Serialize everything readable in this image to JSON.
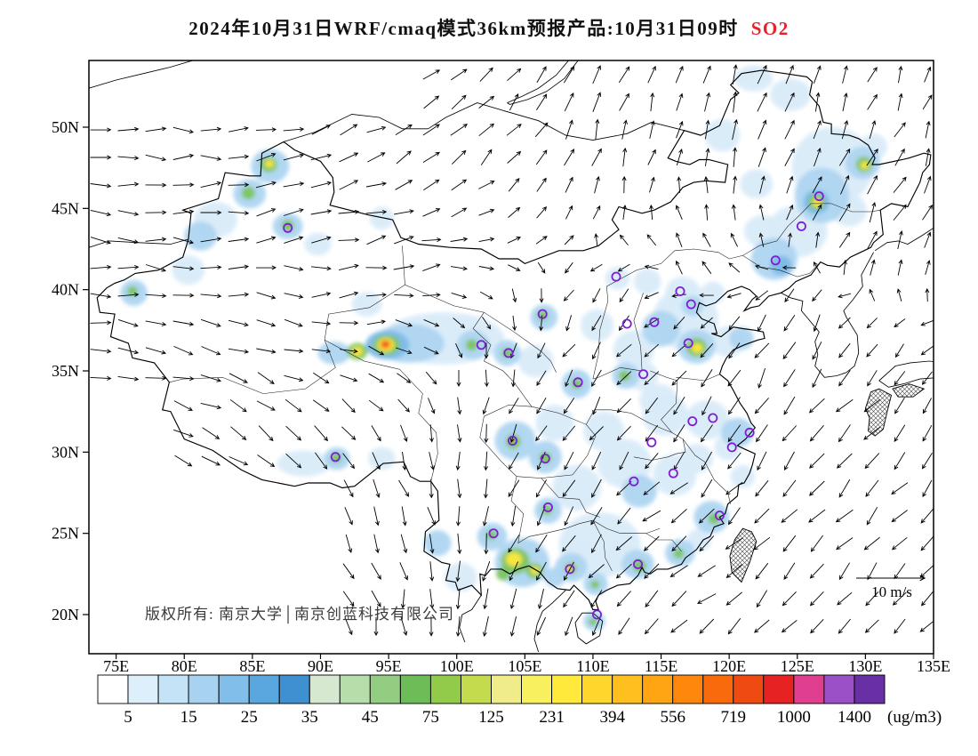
{
  "title": {
    "text": "2024年10月31日WRF/cmaq模式36km预报产品:10月31日09时",
    "species": "SO2",
    "species_color": "#e8212d"
  },
  "map": {
    "copyright": "版权所有: 南京大学│南京创蓝科技有限公司",
    "wind_scale": {
      "label": "10 m/s",
      "speed_mps": 10
    },
    "lat_ticks": [
      {
        "label": "50N",
        "lat": 50
      },
      {
        "label": "45N",
        "lat": 45
      },
      {
        "label": "40N",
        "lat": 40
      },
      {
        "label": "35N",
        "lat": 35
      },
      {
        "label": "30N",
        "lat": 30
      },
      {
        "label": "25N",
        "lat": 25
      },
      {
        "label": "20N",
        "lat": 20
      }
    ],
    "lon_ticks": [
      {
        "label": "75E",
        "lon": 75
      },
      {
        "label": "80E",
        "lon": 80
      },
      {
        "label": "85E",
        "lon": 85
      },
      {
        "label": "90E",
        "lon": 90
      },
      {
        "label": "95E",
        "lon": 95
      },
      {
        "label": "100E",
        "lon": 100
      },
      {
        "label": "105E",
        "lon": 105
      },
      {
        "label": "110E",
        "lon": 110
      },
      {
        "label": "115E",
        "lon": 115
      },
      {
        "label": "120E",
        "lon": 120
      },
      {
        "label": "125E",
        "lon": 125
      },
      {
        "label": "130E",
        "lon": 130
      },
      {
        "label": "135E",
        "lon": 135
      }
    ],
    "marker_color": "#7d1fd1",
    "station_markers": [
      [
        126.6,
        45.75
      ],
      [
        125.3,
        43.9
      ],
      [
        123.4,
        41.8
      ],
      [
        116.4,
        39.9
      ],
      [
        117.2,
        39.1
      ],
      [
        114.5,
        38.0
      ],
      [
        112.5,
        37.9
      ],
      [
        117.0,
        36.7
      ],
      [
        113.7,
        34.8
      ],
      [
        108.9,
        34.3
      ],
      [
        106.3,
        38.5
      ],
      [
        103.8,
        36.1
      ],
      [
        101.8,
        36.6
      ],
      [
        87.6,
        43.8
      ],
      [
        91.1,
        29.7
      ],
      [
        104.1,
        30.7
      ],
      [
        106.5,
        29.6
      ],
      [
        114.3,
        30.6
      ],
      [
        113.0,
        28.2
      ],
      [
        115.9,
        28.7
      ],
      [
        117.3,
        31.9
      ],
      [
        118.8,
        32.1
      ],
      [
        121.5,
        31.2
      ],
      [
        120.2,
        30.3
      ],
      [
        119.3,
        26.1
      ],
      [
        113.3,
        23.1
      ],
      [
        108.3,
        22.8
      ],
      [
        106.7,
        26.6
      ],
      [
        102.7,
        25.0
      ],
      [
        110.3,
        20.0
      ],
      [
        111.7,
        40.8
      ]
    ],
    "field_levels": {
      "pale": "#d9ebf9",
      "light": "#aed5f1",
      "med": "#7db9e8",
      "green": "#7cc45e",
      "ygreen": "#c3db4d",
      "yellow": "#ffe83a",
      "orange": "#ff9712",
      "red": "#e62525"
    },
    "so2_field_blobs": [
      [
        127.6,
        47.6,
        3.0,
        2.4,
        "pale"
      ],
      [
        126.8,
        45.8,
        2.0,
        1.7,
        "light"
      ],
      [
        125.0,
        43.6,
        2.2,
        1.6,
        "pale"
      ],
      [
        123.3,
        41.9,
        1.7,
        1.3,
        "light"
      ],
      [
        123.8,
        41.5,
        0.8,
        0.6,
        "med"
      ],
      [
        126.4,
        45.4,
        0.95,
        0.75,
        "med"
      ],
      [
        126.4,
        45.4,
        0.6,
        0.48,
        "green"
      ],
      [
        126.45,
        45.35,
        0.34,
        0.27,
        "yellow"
      ],
      [
        129.8,
        47.8,
        1.3,
        1.0,
        "light"
      ],
      [
        129.9,
        47.7,
        0.6,
        0.48,
        "green"
      ],
      [
        129.95,
        47.65,
        0.3,
        0.24,
        "yellow"
      ],
      [
        130.6,
        48.8,
        1.0,
        0.8,
        "pale"
      ],
      [
        121.8,
        53.0,
        1.4,
        0.8,
        "pale"
      ],
      [
        124.5,
        52.0,
        1.5,
        1.0,
        "pale"
      ],
      [
        128.8,
        44.9,
        1.3,
        1.0,
        "pale"
      ],
      [
        122.5,
        43.6,
        1.4,
        1.0,
        "pale"
      ],
      [
        119.5,
        49.5,
        1.3,
        1.0,
        "pale"
      ],
      [
        122.0,
        46.5,
        1.2,
        0.9,
        "pale"
      ],
      [
        116.8,
        38.2,
        2.4,
        1.9,
        "pale"
      ],
      [
        115.0,
        37.6,
        1.4,
        1.1,
        "light"
      ],
      [
        117.6,
        36.5,
        1.4,
        1.05,
        "light"
      ],
      [
        117.6,
        36.45,
        0.75,
        0.58,
        "green"
      ],
      [
        117.65,
        36.4,
        0.4,
        0.3,
        "yellow"
      ],
      [
        119.9,
        36.8,
        1.2,
        0.95,
        "pale"
      ],
      [
        120.9,
        37.0,
        0.9,
        0.7,
        "light"
      ],
      [
        113.0,
        36.3,
        1.5,
        1.2,
        "pale"
      ],
      [
        112.4,
        34.7,
        1.0,
        0.8,
        "light"
      ],
      [
        112.3,
        34.7,
        0.42,
        0.33,
        "green"
      ],
      [
        110.3,
        37.8,
        1.2,
        1.0,
        "pale"
      ],
      [
        106.4,
        38.3,
        1.0,
        0.8,
        "light"
      ],
      [
        106.3,
        38.4,
        0.4,
        0.3,
        "green"
      ],
      [
        116.6,
        39.8,
        1.3,
        1.0,
        "pale"
      ],
      [
        117.3,
        39.0,
        0.8,
        0.62,
        "light"
      ],
      [
        114.0,
        40.5,
        1.0,
        0.8,
        "pale"
      ],
      [
        118.8,
        39.8,
        0.9,
        0.7,
        "pale"
      ],
      [
        111.8,
        40.7,
        0.9,
        0.7,
        "pale"
      ],
      [
        99.0,
        37.0,
        4.5,
        1.6,
        "pale"
      ],
      [
        96.5,
        36.7,
        2.6,
        1.2,
        "light"
      ],
      [
        94.9,
        36.6,
        1.6,
        0.9,
        "med"
      ],
      [
        94.85,
        36.6,
        1.0,
        0.62,
        "green"
      ],
      [
        94.8,
        36.6,
        0.62,
        0.42,
        "yellow"
      ],
      [
        94.78,
        36.62,
        0.4,
        0.28,
        "orange"
      ],
      [
        94.76,
        36.64,
        0.24,
        0.17,
        "red"
      ],
      [
        92.7,
        36.2,
        0.75,
        0.52,
        "green"
      ],
      [
        92.7,
        36.2,
        0.38,
        0.28,
        "yellow"
      ],
      [
        91.0,
        36.1,
        1.2,
        0.7,
        "light"
      ],
      [
        101.2,
        36.6,
        1.2,
        0.9,
        "light"
      ],
      [
        101.1,
        36.6,
        0.45,
        0.35,
        "green"
      ],
      [
        103.7,
        36.1,
        1.0,
        0.8,
        "light"
      ],
      [
        103.7,
        36.1,
        0.4,
        0.3,
        "green"
      ],
      [
        105.8,
        35.6,
        1.3,
        1.0,
        "pale"
      ],
      [
        93.4,
        39.1,
        1.1,
        0.75,
        "pale"
      ],
      [
        108.8,
        34.2,
        1.1,
        0.9,
        "light"
      ],
      [
        108.8,
        34.2,
        0.42,
        0.32,
        "green"
      ],
      [
        113.6,
        34.7,
        1.2,
        0.9,
        "pale"
      ],
      [
        114.8,
        33.2,
        1.4,
        1.0,
        "pale"
      ],
      [
        86.3,
        47.6,
        1.4,
        1.05,
        "light"
      ],
      [
        86.2,
        47.7,
        0.62,
        0.47,
        "green"
      ],
      [
        86.25,
        47.75,
        0.32,
        0.24,
        "yellow"
      ],
      [
        84.8,
        45.9,
        1.2,
        0.9,
        "light"
      ],
      [
        84.7,
        45.95,
        0.5,
        0.4,
        "green"
      ],
      [
        82.3,
        44.3,
        1.6,
        1.1,
        "pale"
      ],
      [
        81.2,
        43.3,
        1.2,
        0.9,
        "light"
      ],
      [
        87.6,
        43.9,
        1.1,
        0.8,
        "light"
      ],
      [
        87.6,
        43.95,
        0.46,
        0.35,
        "green"
      ],
      [
        80.3,
        41.2,
        1.2,
        0.9,
        "pale"
      ],
      [
        76.3,
        39.8,
        1.0,
        0.8,
        "light"
      ],
      [
        76.2,
        39.9,
        0.4,
        0.3,
        "green"
      ],
      [
        89.8,
        42.8,
        1.0,
        0.7,
        "pale"
      ],
      [
        94.5,
        44.4,
        0.9,
        0.7,
        "pale"
      ],
      [
        91.2,
        29.6,
        0.95,
        0.7,
        "light"
      ],
      [
        91.15,
        29.65,
        0.4,
        0.3,
        "green"
      ],
      [
        88.8,
        29.3,
        2.0,
        0.8,
        "pale"
      ],
      [
        94.5,
        29.6,
        1.0,
        0.7,
        "pale"
      ],
      [
        104.3,
        30.7,
        1.5,
        1.2,
        "light"
      ],
      [
        104.15,
        30.65,
        0.55,
        0.45,
        "green"
      ],
      [
        106.5,
        29.7,
        1.2,
        1.0,
        "light"
      ],
      [
        106.5,
        29.65,
        0.46,
        0.36,
        "green"
      ],
      [
        108.8,
        27.8,
        1.8,
        1.4,
        "pale"
      ],
      [
        110.8,
        31.3,
        1.5,
        1.2,
        "pale"
      ],
      [
        107.2,
        31.8,
        1.4,
        1.1,
        "pale"
      ],
      [
        112.3,
        29.3,
        2.0,
        1.5,
        "pale"
      ],
      [
        113.4,
        27.6,
        1.3,
        1.0,
        "light"
      ],
      [
        116.0,
        28.6,
        1.6,
        1.3,
        "pale"
      ],
      [
        115.3,
        32.3,
        1.7,
        1.3,
        "pale"
      ],
      [
        118.4,
        32.0,
        1.6,
        1.2,
        "pale"
      ],
      [
        120.6,
        31.2,
        1.2,
        0.9,
        "light"
      ],
      [
        119.9,
        30.3,
        1.0,
        0.8,
        "pale"
      ],
      [
        117.6,
        29.6,
        1.2,
        0.9,
        "pale"
      ],
      [
        121.0,
        28.5,
        0.9,
        0.7,
        "pale"
      ],
      [
        118.7,
        26.0,
        1.3,
        1.0,
        "light"
      ],
      [
        118.9,
        25.9,
        0.45,
        0.35,
        "green"
      ],
      [
        116.4,
        23.8,
        1.1,
        0.85,
        "light"
      ],
      [
        116.3,
        23.75,
        0.4,
        0.3,
        "green"
      ],
      [
        117.8,
        24.6,
        0.9,
        0.7,
        "pale"
      ],
      [
        110.5,
        24.3,
        3.0,
        2.0,
        "pale"
      ],
      [
        104.8,
        23.2,
        2.0,
        1.5,
        "light"
      ],
      [
        104.3,
        23.3,
        1.05,
        0.8,
        "green"
      ],
      [
        104.2,
        23.4,
        0.6,
        0.44,
        "yellow"
      ],
      [
        105.7,
        22.7,
        0.62,
        0.47,
        "green"
      ],
      [
        105.75,
        22.7,
        0.32,
        0.24,
        "yellow"
      ],
      [
        103.4,
        22.5,
        0.5,
        0.4,
        "green"
      ],
      [
        102.6,
        24.8,
        1.1,
        0.85,
        "light"
      ],
      [
        102.55,
        24.9,
        0.4,
        0.3,
        "green"
      ],
      [
        100.3,
        22.3,
        1.2,
        0.9,
        "pale"
      ],
      [
        98.6,
        24.4,
        1.0,
        0.8,
        "light"
      ],
      [
        106.7,
        26.4,
        1.0,
        0.8,
        "light"
      ],
      [
        106.65,
        26.45,
        0.4,
        0.3,
        "green"
      ],
      [
        108.4,
        22.9,
        1.2,
        0.9,
        "light"
      ],
      [
        108.35,
        22.85,
        0.46,
        0.35,
        "green"
      ],
      [
        108.3,
        22.85,
        0.22,
        0.17,
        "yellow"
      ],
      [
        110.2,
        21.9,
        0.9,
        0.7,
        "light"
      ],
      [
        110.15,
        21.85,
        0.34,
        0.26,
        "green"
      ],
      [
        113.3,
        23.1,
        1.2,
        0.9,
        "light"
      ],
      [
        113.4,
        23.0,
        0.5,
        0.38,
        "green"
      ],
      [
        112.0,
        23.6,
        1.3,
        1.0,
        "pale"
      ],
      [
        110.1,
        19.6,
        0.8,
        0.6,
        "light"
      ],
      [
        110.0,
        19.55,
        0.3,
        0.24,
        "green"
      ],
      [
        109.0,
        23.9,
        1.0,
        0.8,
        "pale"
      ],
      [
        107.2,
        22.3,
        0.8,
        0.6,
        "light"
      ]
    ]
  },
  "colorbar": {
    "unit": "(ug/m3)",
    "labels": [
      "5",
      "15",
      "25",
      "35",
      "45",
      "75",
      "125",
      "231",
      "394",
      "556",
      "719",
      "1000",
      "1400"
    ],
    "colors": [
      "#ffffff",
      "#ddeffa",
      "#c5e3f6",
      "#a7d3f0",
      "#81bee9",
      "#5aa7df",
      "#3e90d0",
      "#d6e9d0",
      "#b7ddaa",
      "#92cd82",
      "#6cbc58",
      "#92ca4a",
      "#c3db4d",
      "#efec89",
      "#f8f05f",
      "#ffe93a",
      "#ffd62c",
      "#ffc01f",
      "#ffa514",
      "#ff870c",
      "#f96a0d",
      "#ef4a12",
      "#e62222",
      "#df3f8e",
      "#9c50c8",
      "#6930a5"
    ]
  }
}
